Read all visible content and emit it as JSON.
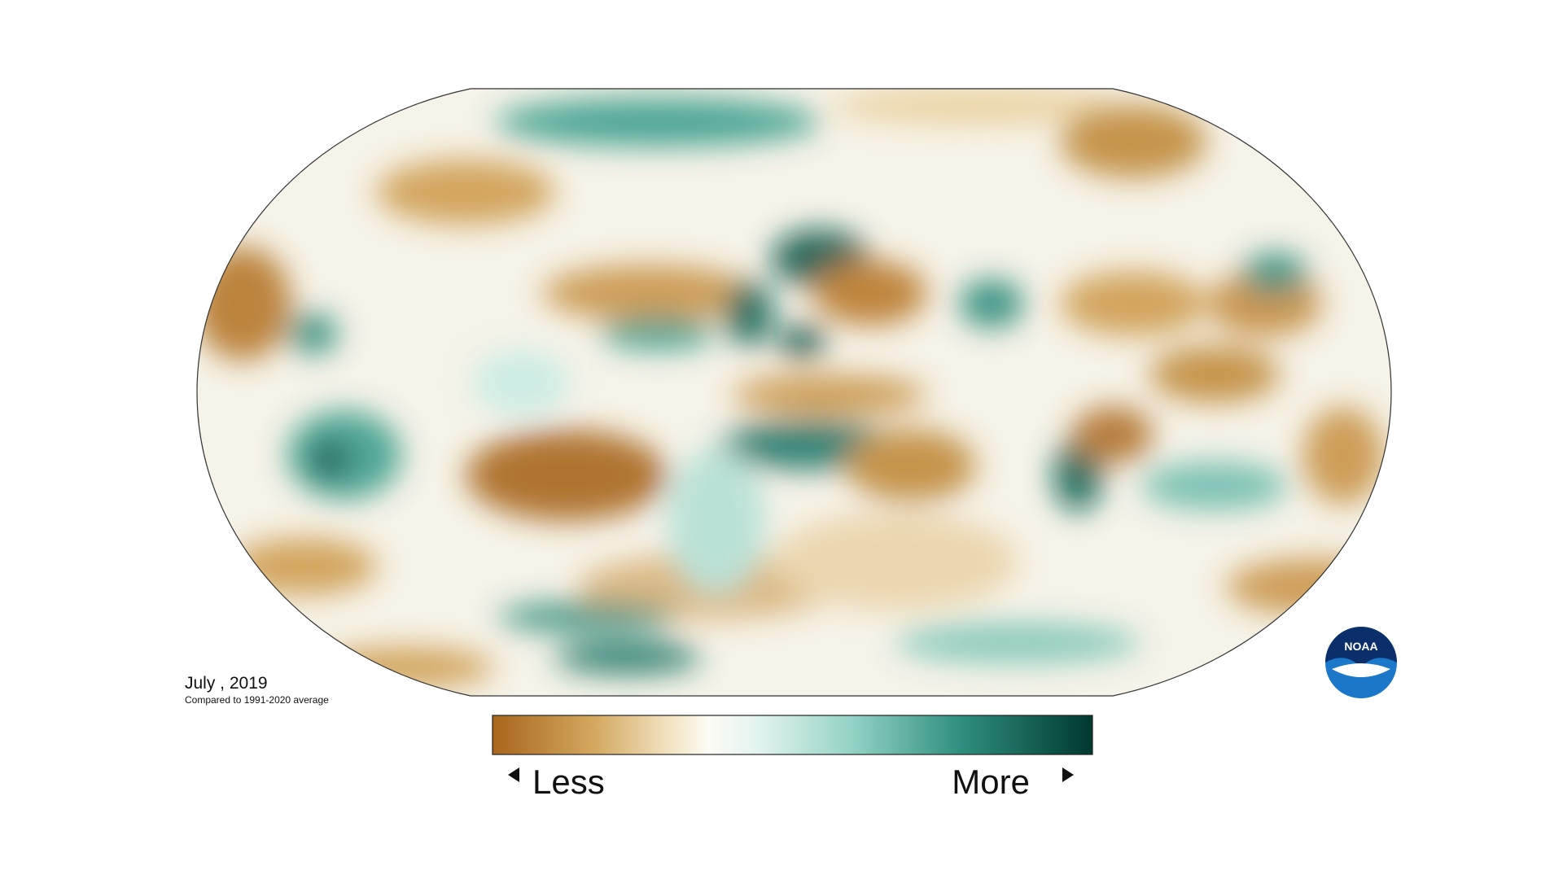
{
  "caption": {
    "title": "July , 2019",
    "subtitle": "Compared to 1991-2020 average"
  },
  "legend": {
    "low": "Less",
    "high": "More"
  },
  "logo": "NOAA"
}
